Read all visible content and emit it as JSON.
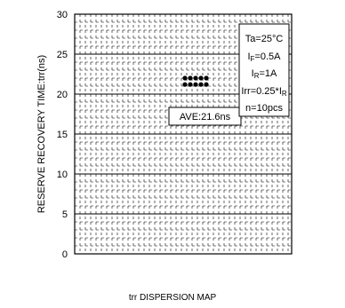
{
  "chart_data": {
    "type": "scatter",
    "title": "",
    "xlabel": "",
    "ylabel": "RESERVE RECOVERY TIME:trr(ns)",
    "ylim": [
      0,
      30
    ],
    "y_ticks": [
      0,
      5,
      10,
      15,
      20,
      25,
      30
    ],
    "grid": true,
    "points": [
      21.2,
      21.2,
      21.2,
      21.2,
      21.2,
      22.0,
      22.0,
      22.0,
      22.0,
      22.0
    ],
    "average_label": "AVE:21.6ns",
    "conditions": {
      "ta": "Ta=25°C",
      "if_main": "I",
      "if_sub": "F",
      "if_rest": "=0.5A",
      "ir_main": "I",
      "ir_sub": "R",
      "ir_rest": "=1A",
      "irr_main": "Irr=0.25*I",
      "irr_sub": "R",
      "n": "n=10pcs"
    },
    "caption": "trr DISPERSION MAP"
  }
}
